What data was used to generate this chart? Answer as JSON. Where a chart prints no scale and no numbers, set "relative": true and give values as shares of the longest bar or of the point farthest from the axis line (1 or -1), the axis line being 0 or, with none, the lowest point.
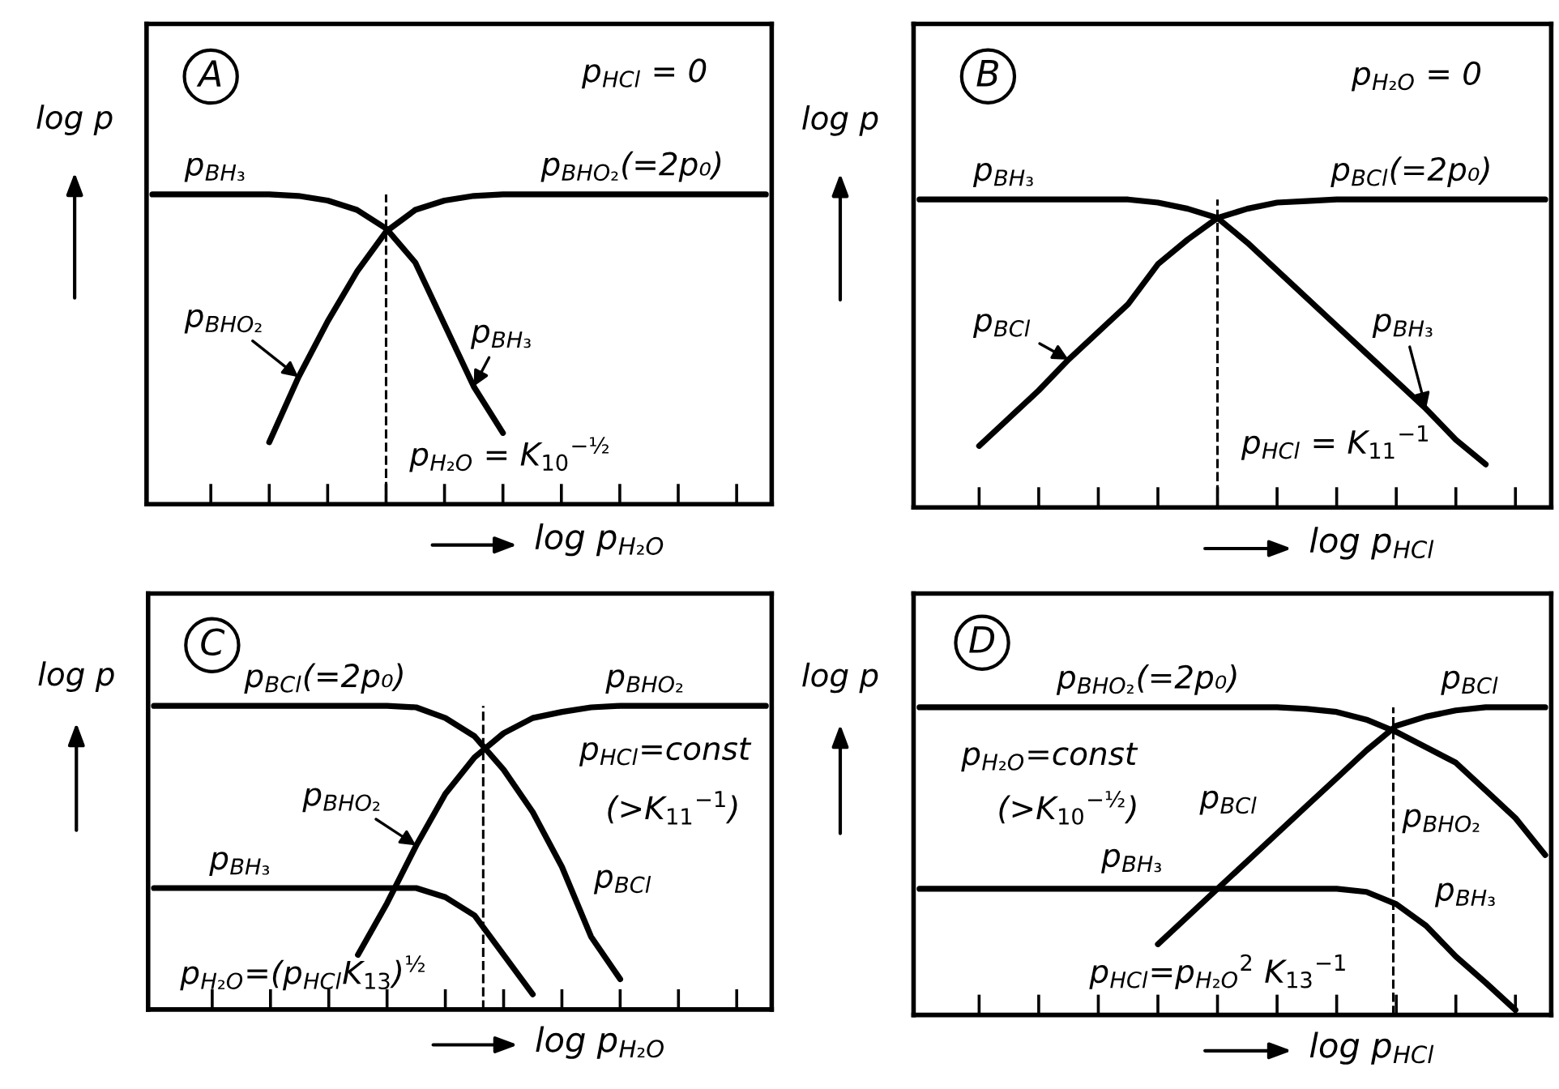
{
  "chart_data": [
    {
      "type": "line",
      "relative": true,
      "title": "A",
      "xlabel": "log p$_{H₂O}$",
      "ylabel": "log p",
      "legend": false,
      "grid": false,
      "categories": [
        null,
        null,
        null,
        null,
        null,
        null,
        null,
        null,
        null,
        null,
        null,
        null,
        null,
        null,
        null,
        null,
        null,
        null,
        null,
        null,
        null,
        null
      ],
      "series": [
        {
          "name": "p$_{BH₃}$",
          "color": "#000000",
          "values": [
            1,
            1,
            1,
            1,
            1,
            0.995,
            0.98,
            0.95,
            0.89,
            0.78,
            0.58,
            0.38,
            0.23,
            null,
            null,
            null,
            null,
            null,
            null,
            null,
            null,
            null
          ]
        },
        {
          "name": "p$_{BHO₂}$",
          "color": "#000000",
          "values": [
            null,
            null,
            null,
            null,
            0.2,
            0.41,
            0.59,
            0.75,
            0.88,
            0.95,
            0.98,
            0.995,
            1,
            1,
            1,
            1,
            1,
            1,
            1,
            1,
            1,
            1
          ]
        }
      ],
      "annotations": [
        "p$_{BH₃}$",
        "p$_{BHO₂}$(=2p₀)",
        "p$_{HCl}$ = 0",
        "p$_{H₂O}$ = K$_{10}$$^{−½}$"
      ]
    },
    {
      "type": "line",
      "relative": true,
      "title": "B",
      "xlabel": "log p$_{HCl}$",
      "ylabel": "log p",
      "legend": false,
      "grid": false,
      "categories": [
        null,
        null,
        null,
        null,
        null,
        null,
        null,
        null,
        null,
        null,
        null,
        null,
        null,
        null,
        null,
        null,
        null,
        null,
        null,
        null,
        null,
        null
      ],
      "series": [
        {
          "name": "p$_{BCl}$",
          "color": "#000000",
          "values": [
            null,
            null,
            0.2,
            0.29,
            0.38,
            0.48,
            0.57,
            0.66,
            0.79,
            0.87,
            0.94,
            0.97,
            0.99,
            0.995,
            1,
            1,
            1,
            1,
            1,
            1,
            1,
            1
          ]
        },
        {
          "name": "p$_{BH₃}$",
          "color": "#000000",
          "values": [
            1,
            1,
            1,
            1,
            1,
            1,
            1,
            1,
            0.99,
            0.97,
            0.94,
            0.86,
            0.77,
            0.68,
            0.59,
            0.5,
            0.41,
            0.32,
            0.22,
            0.14,
            null,
            null
          ]
        }
      ],
      "annotations": [
        "p$_{BH₃}$",
        "p$_{BCl}$(=2p₀)",
        "p$_{H₂O}$ = 0",
        "p$_{HCl}$ = K$_{11}$$^{−1}$"
      ]
    },
    {
      "type": "line",
      "relative": true,
      "title": "C",
      "xlabel": "log p$_{H₂O}$",
      "ylabel": "log p",
      "legend": false,
      "grid": false,
      "categories": [
        null,
        null,
        null,
        null,
        null,
        null,
        null,
        null,
        null,
        null,
        null,
        null,
        null,
        null,
        null,
        null,
        null,
        null,
        null,
        null,
        null,
        null
      ],
      "series": [
        {
          "name": "p$_{BCl}$",
          "color": "#000000",
          "values": [
            1,
            1,
            1,
            1,
            1,
            1,
            1,
            1,
            1,
            0.995,
            0.96,
            0.9,
            0.79,
            0.65,
            0.47,
            0.24,
            0.1,
            null,
            null,
            null,
            null,
            null
          ]
        },
        {
          "name": "p$_{BHO₂}$",
          "color": "#000000",
          "values": [
            null,
            null,
            null,
            null,
            null,
            null,
            null,
            0.18,
            0.35,
            0.54,
            0.71,
            0.83,
            0.91,
            0.96,
            0.98,
            0.995,
            1,
            1,
            1,
            1,
            1,
            1
          ]
        },
        {
          "name": "p$_{BH₃}$",
          "color": "#000000",
          "values": [
            0.4,
            0.4,
            0.4,
            0.4,
            0.4,
            0.4,
            0.4,
            0.4,
            0.4,
            0.4,
            0.37,
            0.31,
            0.18,
            0.05,
            null,
            null,
            null,
            null,
            null,
            null,
            null,
            null
          ]
        }
      ],
      "annotations": [
        "p$_{BCl}$(=2p₀)",
        "p$_{BHO₂}$",
        "p$_{HCl}$=const",
        "(>K$_{11}$$^{−1}$)",
        "p$_{H₂O}$=(p$_{HCl}$K$_{13}$)$^{½}$"
      ]
    },
    {
      "type": "line",
      "relative": true,
      "title": "D",
      "xlabel": "log p$_{HCl}$",
      "ylabel": "log p",
      "legend": false,
      "grid": false,
      "categories": [
        null,
        null,
        null,
        null,
        null,
        null,
        null,
        null,
        null,
        null,
        null,
        null,
        null,
        null,
        null,
        null,
        null,
        null,
        null,
        null,
        null,
        null
      ],
      "series": [
        {
          "name": "p$_{BCl}$",
          "color": "#000000",
          "values": [
            null,
            null,
            null,
            null,
            null,
            null,
            null,
            null,
            0.23,
            0.32,
            0.41,
            0.5,
            0.59,
            0.68,
            0.77,
            0.86,
            0.94,
            0.97,
            0.99,
            1,
            1,
            1
          ]
        },
        {
          "name": "p$_{BHO₂}$",
          "color": "#000000",
          "values": [
            1,
            1,
            1,
            1,
            1,
            1,
            1,
            1,
            1,
            1,
            1,
            1,
            1,
            0.995,
            0.985,
            0.96,
            0.92,
            0.87,
            0.82,
            0.73,
            0.64,
            0.52
          ]
        },
        {
          "name": "p$_{BH₃}$",
          "color": "#000000",
          "values": [
            0.41,
            0.41,
            0.41,
            0.41,
            0.41,
            0.41,
            0.41,
            0.41,
            0.41,
            0.41,
            0.41,
            0.41,
            0.41,
            0.41,
            0.41,
            0.4,
            0.36,
            0.29,
            0.19,
            0.105,
            0.016,
            null
          ]
        }
      ],
      "annotations": [
        "p$_{BHO₂}$(=2p₀)",
        "p$_{BCl}$",
        "p$_{H₂O}$=const",
        "(>K$_{10}$$^{−½}$)",
        "p$_{BH₃}$",
        "p$_{HCl}$=p$_{H₂O}$$^{2}$ K$_{13}$$^{−1}$"
      ]
    }
  ]
}
